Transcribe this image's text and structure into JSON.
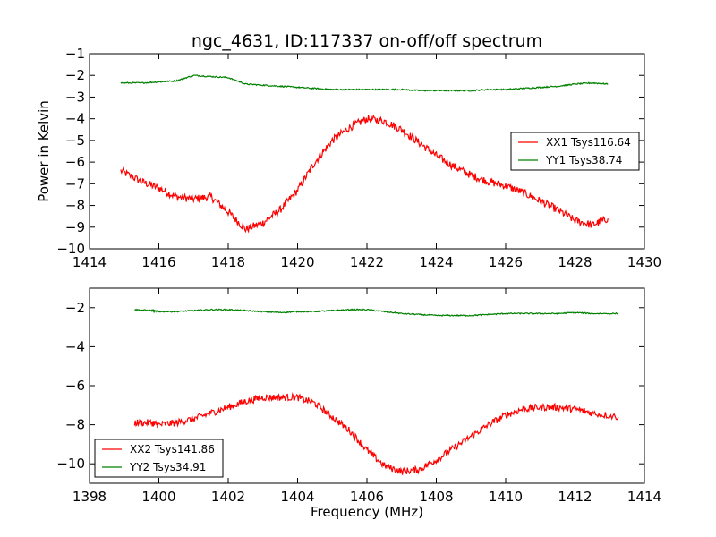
{
  "title": "ngc_4631, ID:117337 on-off/off spectrum",
  "chart_data": [
    {
      "type": "line",
      "title": "ngc_4631, ID:117337 on-off/off spectrum",
      "xlabel": "",
      "ylabel": "Power in Kelvin",
      "xlim": [
        1414,
        1430
      ],
      "ylim": [
        -10,
        -1
      ],
      "xticks": [
        1414,
        1416,
        1418,
        1420,
        1422,
        1424,
        1426,
        1428,
        1430
      ],
      "xtick_labels": [
        "1414",
        "1416",
        "1418",
        "1420",
        "1422",
        "1424",
        "1426",
        "1428",
        "1430"
      ],
      "yticks": [
        -1,
        -2,
        -3,
        -4,
        -5,
        -6,
        -7,
        -8,
        -9,
        -10
      ],
      "ytick_labels": [
        "−1",
        "−2",
        "−3",
        "−4",
        "−5",
        "−6",
        "−7",
        "−8",
        "−9",
        "−10"
      ],
      "legend_position": "center-right",
      "series": [
        {
          "name": "XX1 Tsys116.64",
          "color": "#ff0000",
          "x": [
            1414.9,
            1415.5,
            1416.0,
            1416.5,
            1417.0,
            1417.5,
            1418.0,
            1418.5,
            1419.0,
            1419.5,
            1420.0,
            1420.5,
            1421.0,
            1421.5,
            1422.0,
            1422.5,
            1423.0,
            1423.5,
            1424.0,
            1424.5,
            1425.0,
            1425.5,
            1426.0,
            1426.5,
            1427.0,
            1427.5,
            1428.0,
            1428.5,
            1428.95
          ],
          "y": [
            -6.4,
            -6.9,
            -7.2,
            -7.6,
            -7.7,
            -7.6,
            -8.3,
            -9.1,
            -8.8,
            -8.2,
            -7.3,
            -6.0,
            -5.0,
            -4.4,
            -4.0,
            -4.1,
            -4.5,
            -5.1,
            -5.7,
            -6.2,
            -6.6,
            -6.9,
            -7.1,
            -7.4,
            -7.8,
            -8.2,
            -8.7,
            -8.9,
            -8.6
          ]
        },
        {
          "name": "YY1 Tsys38.74",
          "color": "#008000",
          "x": [
            1414.9,
            1415.5,
            1416.0,
            1416.5,
            1417.0,
            1417.5,
            1418.0,
            1418.5,
            1419.0,
            1419.5,
            1420.0,
            1420.5,
            1421.0,
            1421.5,
            1422.0,
            1422.5,
            1423.0,
            1423.5,
            1424.0,
            1424.5,
            1425.0,
            1425.5,
            1426.0,
            1426.5,
            1427.0,
            1427.5,
            1428.0,
            1428.5,
            1428.95
          ],
          "y": [
            -2.35,
            -2.35,
            -2.3,
            -2.25,
            -2.0,
            -2.05,
            -2.1,
            -2.4,
            -2.45,
            -2.5,
            -2.55,
            -2.6,
            -2.65,
            -2.65,
            -2.65,
            -2.65,
            -2.65,
            -2.7,
            -2.7,
            -2.7,
            -2.7,
            -2.65,
            -2.65,
            -2.6,
            -2.55,
            -2.5,
            -2.4,
            -2.35,
            -2.4
          ]
        }
      ]
    },
    {
      "type": "line",
      "title": "",
      "xlabel": "Frequency (MHz)",
      "ylabel": "",
      "xlim": [
        1398,
        1414
      ],
      "ylim": [
        -11,
        -1
      ],
      "xticks": [
        1398,
        1400,
        1402,
        1404,
        1406,
        1408,
        1410,
        1412,
        1414
      ],
      "xtick_labels": [
        "1398",
        "1400",
        "1402",
        "1404",
        "1406",
        "1408",
        "1410",
        "1412",
        "1414"
      ],
      "yticks": [
        -2,
        -4,
        -6,
        -8,
        -10
      ],
      "ytick_labels": [
        "−2",
        "−4",
        "−6",
        "−8",
        "−10"
      ],
      "legend_position": "lower-left",
      "series": [
        {
          "name": "XX2 Tsys141.86",
          "color": "#ff0000",
          "x": [
            1399.3,
            1399.8,
            1400.0,
            1400.5,
            1401.0,
            1401.5,
            1402.0,
            1402.5,
            1403.0,
            1403.5,
            1404.0,
            1404.5,
            1405.0,
            1405.5,
            1406.0,
            1406.5,
            1407.0,
            1407.5,
            1408.0,
            1408.5,
            1409.0,
            1409.5,
            1410.0,
            1410.5,
            1411.0,
            1411.5,
            1412.0,
            1412.5,
            1413.25
          ],
          "y": [
            -7.9,
            -7.9,
            -8.0,
            -7.9,
            -7.7,
            -7.4,
            -7.1,
            -6.8,
            -6.6,
            -6.6,
            -6.6,
            -6.9,
            -7.6,
            -8.3,
            -9.3,
            -10.1,
            -10.4,
            -10.3,
            -9.8,
            -9.2,
            -8.6,
            -8.0,
            -7.5,
            -7.2,
            -7.1,
            -7.1,
            -7.2,
            -7.4,
            -7.6
          ]
        },
        {
          "name": "YY2 Tsys34.91",
          "color": "#008000",
          "x": [
            1399.3,
            1399.8,
            1400.0,
            1400.5,
            1401.0,
            1401.5,
            1402.0,
            1402.5,
            1403.0,
            1403.5,
            1404.0,
            1404.5,
            1405.0,
            1405.5,
            1406.0,
            1406.5,
            1407.0,
            1407.5,
            1408.0,
            1408.5,
            1409.0,
            1409.5,
            1410.0,
            1410.5,
            1411.0,
            1411.5,
            1412.0,
            1412.5,
            1413.25
          ],
          "y": [
            -2.1,
            -2.15,
            -2.2,
            -2.2,
            -2.15,
            -2.1,
            -2.1,
            -2.15,
            -2.2,
            -2.25,
            -2.2,
            -2.2,
            -2.15,
            -2.1,
            -2.1,
            -2.2,
            -2.3,
            -2.35,
            -2.4,
            -2.4,
            -2.4,
            -2.35,
            -2.3,
            -2.3,
            -2.3,
            -2.3,
            -2.25,
            -2.3,
            -2.3
          ]
        }
      ]
    }
  ]
}
